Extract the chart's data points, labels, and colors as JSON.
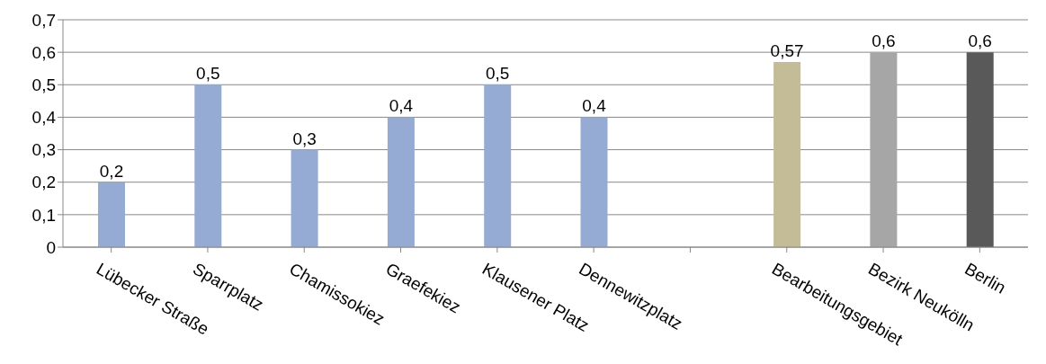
{
  "chart_data": {
    "type": "bar",
    "categories": [
      "Lübecker Straße",
      "Sparrplatz",
      "Chamissokiez",
      "Graefekiez",
      "Klausener Platz",
      "Dennewitzplatz",
      null,
      "Bearbeitungsgebiet",
      "Bezirk Neukölln",
      "Berlin"
    ],
    "values": [
      0.2,
      0.5,
      0.3,
      0.4,
      0.5,
      0.4,
      null,
      0.57,
      0.6,
      0.6
    ],
    "colors": [
      "#95abd3",
      "#95abd3",
      "#95abd3",
      "#95abd3",
      "#95abd3",
      "#95abd3",
      "#95abd3",
      "#c4bc96",
      "#a6a6a6",
      "#595959"
    ],
    "value_labels": [
      "0,2",
      "0,5",
      "0,3",
      "0,4",
      "0,5",
      "0,4",
      null,
      "0,57",
      "0,6",
      "0,6"
    ],
    "ylim": [
      0,
      0.7
    ],
    "yticks": [
      {
        "value": 0,
        "label": "0"
      },
      {
        "value": 0.1,
        "label": "0,1"
      },
      {
        "value": 0.2,
        "label": "0,2"
      },
      {
        "value": 0.3,
        "label": "0,3"
      },
      {
        "value": 0.4,
        "label": "0,4"
      },
      {
        "value": 0.5,
        "label": "0,5"
      },
      {
        "value": 0.6,
        "label": "0,6"
      },
      {
        "value": 0.7,
        "label": "0,7"
      }
    ],
    "grid": "y",
    "legend": false
  }
}
